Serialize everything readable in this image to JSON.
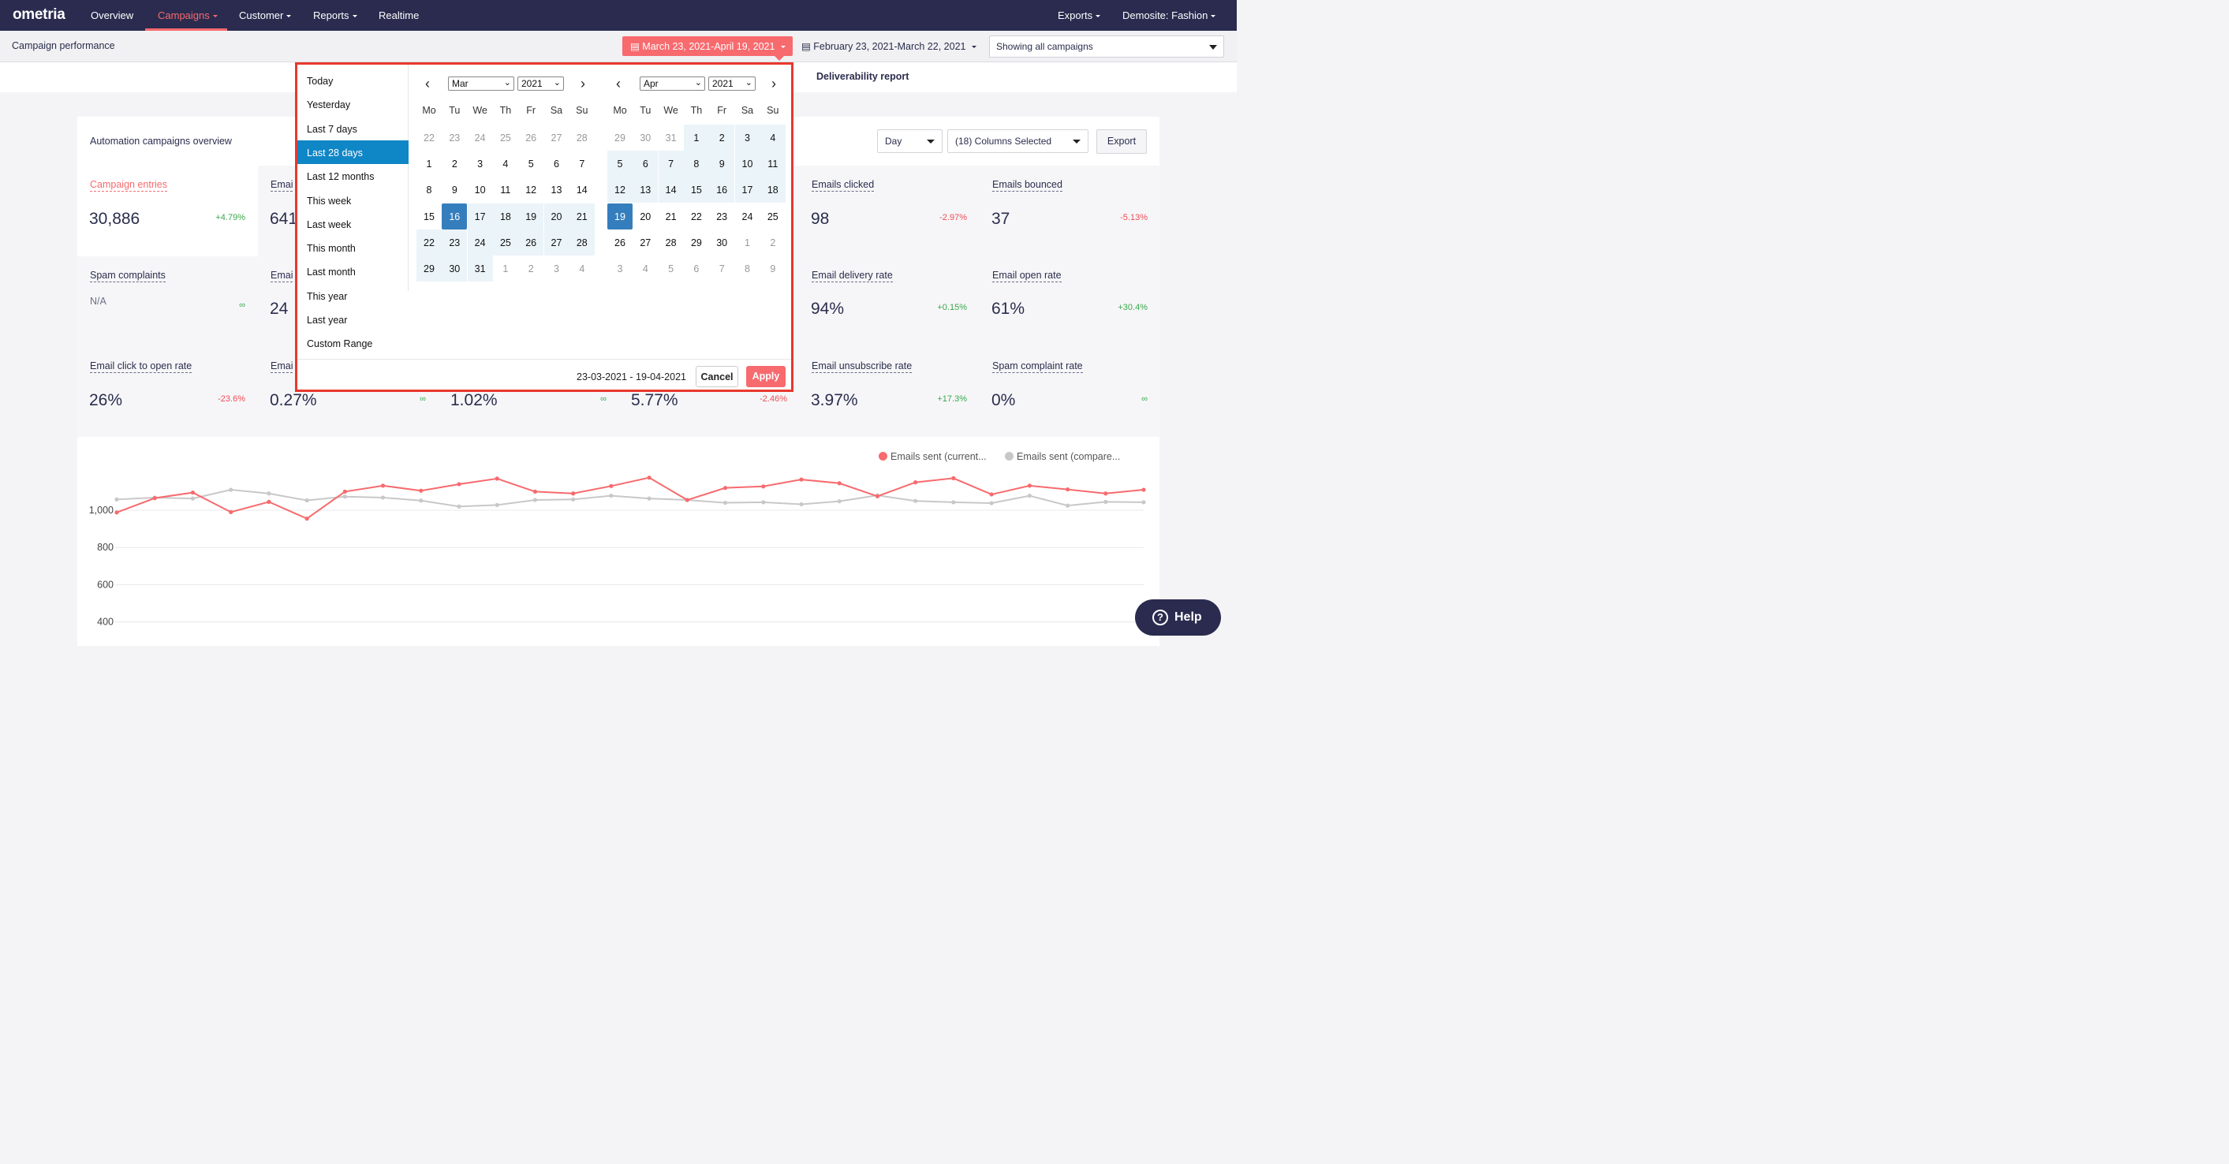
{
  "nav": {
    "logo": "ometria",
    "items": [
      "Overview",
      "Campaigns",
      "Customer",
      "Reports",
      "Realtime"
    ],
    "right": [
      "Exports",
      "Demosite: Fashion"
    ]
  },
  "subbar": {
    "title": "Campaign performance",
    "date_range": "March 23, 2021-April 19, 2021",
    "compare_range": "February 23, 2021-March 22, 2021",
    "campaign_filter": "Showing all campaigns"
  },
  "tabs": {
    "deliverability": "Deliverability report"
  },
  "overview": {
    "heading": "Automation campaigns overview",
    "granularity": "Day",
    "columns": "(18) Columns Selected",
    "export": "Export"
  },
  "metrics": [
    {
      "label": "Campaign entries",
      "value": "30,886",
      "change": "+4.79%",
      "tone": "pos"
    },
    {
      "label": "Emai",
      "value": "641",
      "change": "",
      "tone": ""
    },
    {
      "label": "Emails clicked",
      "value": "98",
      "change": "-2.97%",
      "tone": "neg"
    },
    {
      "label": "Emails bounced",
      "value": "37",
      "change": "-5.13%",
      "tone": "neg"
    },
    {
      "label": "Spam complaints",
      "value": "N/A",
      "change": "∞",
      "tone": "pos"
    },
    {
      "label": "Emai",
      "value": "24",
      "change": "",
      "tone": ""
    },
    {
      "label": "Email delivery rate",
      "value": "94%",
      "change": "+0.15%",
      "tone": "pos"
    },
    {
      "label": "Email open rate",
      "value": "61%",
      "change": "+30.4%",
      "tone": "pos"
    },
    {
      "label": "Email click to open rate",
      "value": "26%",
      "change": "-23.6%",
      "tone": "neg"
    },
    {
      "label": "Emai",
      "value": "0.27%",
      "change": "∞",
      "tone": "pos"
    },
    {
      "label": "",
      "value": "1.02%",
      "change": "∞",
      "tone": "pos"
    },
    {
      "label": "",
      "value": "5.77%",
      "change": "-2.46%",
      "tone": "neg"
    },
    {
      "label": "Email unsubscribe rate",
      "value": "3.97%",
      "change": "+17.3%",
      "tone": "pos"
    },
    {
      "label": "Spam complaint rate",
      "value": "0%",
      "change": "∞",
      "tone": "pos"
    }
  ],
  "picker": {
    "ranges": [
      "Today",
      "Yesterday",
      "Last 7 days",
      "Last 28 days",
      "Last 12 months",
      "This week",
      "Last week",
      "This month",
      "Last month",
      "This year",
      "Last year",
      "Custom Range"
    ],
    "active_range": "Last 28 days",
    "weekdays": [
      "Mo",
      "Tu",
      "We",
      "Th",
      "Fr",
      "Sa",
      "Su"
    ],
    "left": {
      "month": "Mar",
      "year": "2021",
      "days": [
        22,
        23,
        24,
        25,
        26,
        27,
        28,
        1,
        2,
        3,
        4,
        5,
        6,
        7,
        8,
        9,
        10,
        11,
        12,
        13,
        14,
        15,
        16,
        17,
        18,
        19,
        20,
        21,
        22,
        23,
        24,
        25,
        26,
        27,
        28,
        29,
        30,
        31,
        1,
        2,
        3,
        4
      ]
    },
    "right": {
      "month": "Apr",
      "year": "2021",
      "days": [
        29,
        30,
        31,
        1,
        2,
        3,
        4,
        5,
        6,
        7,
        8,
        9,
        10,
        11,
        12,
        13,
        14,
        15,
        16,
        17,
        18,
        19,
        20,
        21,
        22,
        23,
        24,
        25,
        26,
        27,
        28,
        29,
        30,
        1,
        2,
        3,
        4,
        5,
        6,
        7,
        8,
        9
      ]
    },
    "selected_text": "23-03-2021 - 19-04-2021",
    "cancel": "Cancel",
    "apply": "Apply"
  },
  "help": "Help",
  "chart_data": {
    "type": "line",
    "legend": [
      "Emails sent (current...",
      "Emails sent (compare..."
    ],
    "y_ticks": [
      "1,000",
      "800",
      "600",
      "400"
    ],
    "ylim": [
      350,
      1100
    ],
    "series": [
      {
        "name": "Emails sent (current...",
        "color": "#f76a6e",
        "values": [
          988,
          1065,
          1095,
          990,
          1045,
          955,
          1100,
          1132,
          1105,
          1140,
          1170,
          1100,
          1090,
          1130,
          1175,
          1055,
          1120,
          1128,
          1165,
          1145,
          1075,
          1150,
          1172,
          1085,
          1132,
          1112,
          1090,
          1110
        ]
      },
      {
        "name": "Emails sent (compare...",
        "color": "#c8c8c8",
        "values": [
          1058,
          1068,
          1063,
          1110,
          1090,
          1053,
          1073,
          1068,
          1052,
          1020,
          1028,
          1055,
          1058,
          1078,
          1063,
          1055,
          1040,
          1043,
          1032,
          1048,
          1080,
          1050,
          1043,
          1038,
          1078,
          1025,
          1045,
          1043
        ]
      }
    ]
  }
}
